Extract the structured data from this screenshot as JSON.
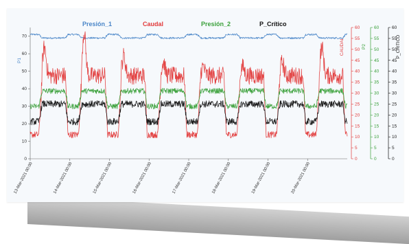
{
  "chart_data": {
    "type": "line",
    "legend": [
      {
        "label": "Presión_1",
        "color": "#4a86c8"
      },
      {
        "label": "Caudal",
        "color": "#e23a3a"
      },
      {
        "label": "Presión_2",
        "color": "#3aa03a"
      },
      {
        "label": "P_Crítico",
        "color": "#111111"
      }
    ],
    "legend_placement": "top",
    "x_ticks": [
      "13-Mar-2021 00:00",
      "14-Mar-2021 00:00",
      "15-Mar-2021 00:00",
      "16-Mar-2021 00:00",
      "17-Mar-2021 00:00",
      "18-Mar-2021 00:00",
      "19-Mar-2021 00:00",
      "20-Mar-2021 00:00"
    ],
    "axes": [
      {
        "id": "P1",
        "title": "P1",
        "color": "#4a86c8",
        "side": "left",
        "range": [
          0,
          75
        ],
        "ticks": [
          0,
          10,
          20,
          30,
          40,
          50,
          60,
          70
        ]
      },
      {
        "id": "CAUDAL",
        "title": "CAUDAL",
        "color": "#e23a3a",
        "side": "right",
        "range": [
          0,
          60
        ],
        "ticks": [
          0,
          5,
          10,
          15,
          20,
          25,
          30,
          35,
          40,
          45,
          50,
          55,
          60
        ]
      },
      {
        "id": "P2",
        "title": "P2",
        "color": "#3aa03a",
        "side": "right",
        "range": [
          0,
          60
        ],
        "ticks": [
          0,
          5,
          10,
          15,
          20,
          25,
          30,
          35,
          40,
          45,
          50,
          55,
          60
        ]
      },
      {
        "id": "PCRIT",
        "title": "P_CRITICO",
        "color": "#111111",
        "side": "right",
        "range": [
          0,
          60
        ],
        "ticks": [
          0,
          5,
          10,
          15,
          20,
          25,
          30,
          35,
          40,
          45,
          50,
          55,
          60
        ]
      }
    ],
    "days": 8,
    "series": [
      {
        "name": "Presión_1",
        "axis": "P1",
        "color": "#4a86c8",
        "night": 71,
        "day": 69
      },
      {
        "name": "Caudal",
        "axis": "CAUDAL",
        "color": "#e23a3a",
        "night": 11,
        "day": 38,
        "peak": [
          51,
          58,
          47,
          44,
          42,
          42,
          44,
          51
        ]
      },
      {
        "name": "Presión_2",
        "axis": "P2",
        "color": "#3aa03a",
        "night": 24,
        "day": 31
      },
      {
        "name": "P_Crítico",
        "axis": "PCRIT",
        "color": "#111111",
        "night": 17,
        "day": 25
      }
    ],
    "grid": false
  }
}
